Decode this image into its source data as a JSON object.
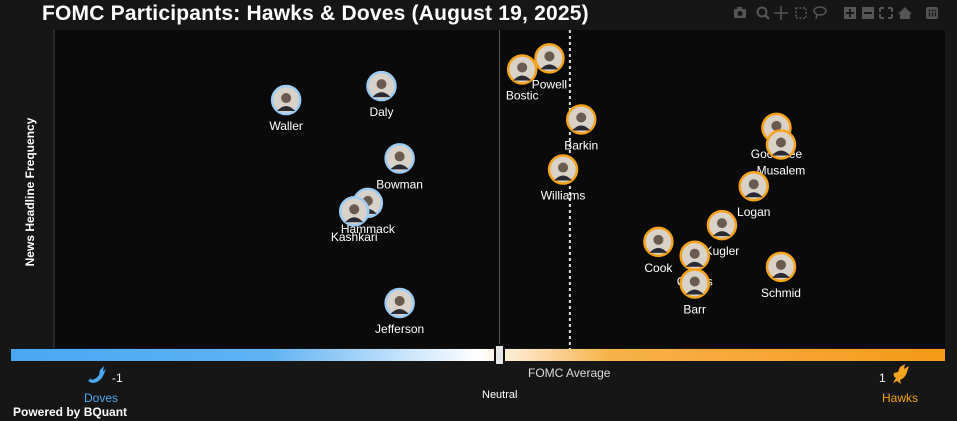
{
  "title": "FOMC Participants: Hawks & Doves (August 19, 2025)",
  "toolbar": {
    "items": [
      "camera-icon",
      "zoom-icon",
      "pan-icon",
      "box-select-icon",
      "lasso-icon",
      "zoom-in-icon",
      "zoom-out-icon",
      "autoscale-icon",
      "home-icon",
      "plotly-logo-icon"
    ]
  },
  "chart_data": {
    "type": "scatter",
    "title": "FOMC Participants: Hawks & Doves (August 19, 2025)",
    "xlabel": "",
    "ylabel": "News Headline Frequency",
    "xlim": [
      -1,
      1
    ],
    "points": [
      {
        "name": "Waller",
        "x": -0.47,
        "y": 0.82,
        "side": "dove"
      },
      {
        "name": "Daly",
        "x": -0.26,
        "y": 0.87,
        "side": "dove"
      },
      {
        "name": "Bowman",
        "x": -0.22,
        "y": 0.61,
        "side": "dove"
      },
      {
        "name": "Hammack",
        "x": -0.29,
        "y": 0.45,
        "side": "dove"
      },
      {
        "name": "Kashkari",
        "x": -0.32,
        "y": 0.42,
        "side": "dove"
      },
      {
        "name": "Jefferson",
        "x": -0.22,
        "y": 0.09,
        "side": "dove"
      },
      {
        "name": "Powell",
        "x": 0.11,
        "y": 0.97,
        "side": "hawk"
      },
      {
        "name": "Bostic",
        "x": 0.05,
        "y": 0.93,
        "side": "hawk"
      },
      {
        "name": "Barkin",
        "x": 0.18,
        "y": 0.75,
        "side": "hawk"
      },
      {
        "name": "Williams",
        "x": 0.14,
        "y": 0.57,
        "side": "hawk"
      },
      {
        "name": "Goolsbee",
        "x": 0.61,
        "y": 0.72,
        "side": "hawk"
      },
      {
        "name": "Musalem",
        "x": 0.62,
        "y": 0.66,
        "side": "hawk"
      },
      {
        "name": "Logan",
        "x": 0.56,
        "y": 0.51,
        "side": "hawk"
      },
      {
        "name": "Kugler",
        "x": 0.49,
        "y": 0.37,
        "side": "hawk"
      },
      {
        "name": "Cook",
        "x": 0.35,
        "y": 0.31,
        "side": "hawk"
      },
      {
        "name": "Collins",
        "x": 0.43,
        "y": 0.26,
        "side": "hawk"
      },
      {
        "name": "Barr",
        "x": 0.43,
        "y": 0.16,
        "side": "hawk"
      },
      {
        "name": "Schmid",
        "x": 0.62,
        "y": 0.22,
        "side": "hawk"
      }
    ],
    "fomc_average": 0.155,
    "scale": {
      "left_label": "Doves",
      "left_value": "-1",
      "right_label": "Hawks",
      "right_value": "1",
      "center_label": "Neutral",
      "average_label": "FOMC Average"
    },
    "colors": {
      "dove": "#4aa7f1",
      "hawk": "#f5a21c",
      "background": "#0a0a0a",
      "page": "#161616"
    }
  },
  "footer": "Powered by BQuant"
}
